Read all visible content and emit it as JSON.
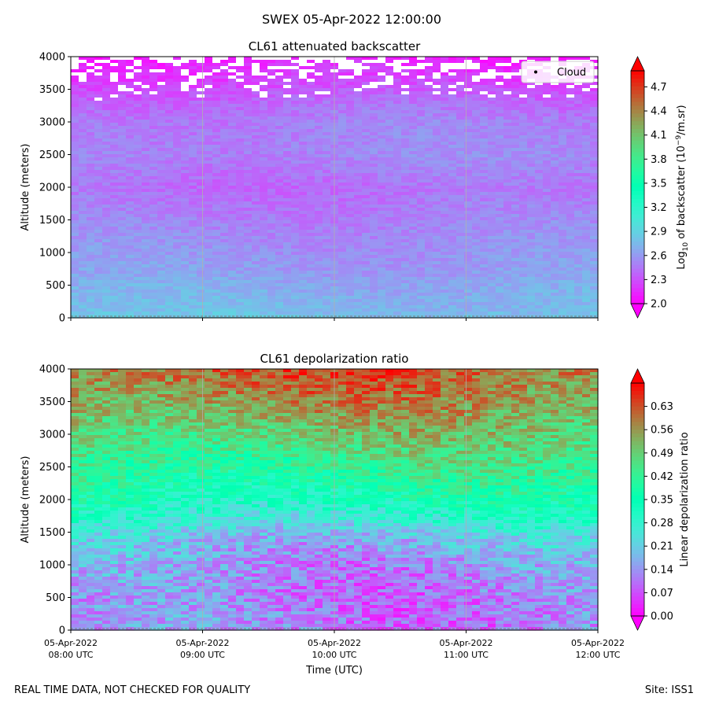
{
  "suptitle": "SWEX 05-Apr-2022 12:00:00",
  "footer": {
    "left": "REAL TIME DATA, NOT CHECKED FOR QUALITY",
    "right": "Site: ISS1"
  },
  "chart_data": [
    {
      "type": "heatmap",
      "title": "CL61 attenuated backscatter",
      "ylabel": "Altitude (meters)",
      "xlabel": "",
      "xlim": [
        "2022-04-05T08:00Z",
        "2022-04-05T12:00Z"
      ],
      "ylim": [
        0,
        4000
      ],
      "yticks": [
        0,
        500,
        1000,
        1500,
        2000,
        2500,
        3000,
        3500,
        4000
      ],
      "xticks": [],
      "xticks_labels_shown": false,
      "grid": "vertical",
      "legend": {
        "entries": [
          "Cloud"
        ],
        "placement": "top-right",
        "marker": "black-dot"
      },
      "colormap": "rainbow",
      "colorbar": {
        "label_main": "Log",
        "label_sub": "10",
        "label_rest": " of backscatter (10",
        "label_sup": "−9",
        "label_end": "/m.sr)",
        "min": 2.0,
        "max": 4.9,
        "ticks": [
          "2.0",
          "2.3",
          "2.6",
          "2.9",
          "3.2",
          "3.5",
          "3.8",
          "4.1",
          "4.4",
          "4.7"
        ],
        "extend": "both"
      },
      "profile": {
        "altitudes": [
          0,
          100,
          300,
          500,
          700,
          1000,
          1500,
          2000,
          2500,
          3000,
          3300,
          3600,
          4000
        ],
        "values": [
          2.85,
          2.75,
          2.72,
          2.68,
          2.62,
          2.58,
          2.5,
          2.42,
          2.52,
          2.48,
          2.4,
          2.25,
          2.1
        ]
      }
    },
    {
      "type": "heatmap",
      "title": "CL61 depolarization ratio",
      "ylabel": "Altitude (meters)",
      "xlabel": "Time (UTC)",
      "xlim": [
        "2022-04-05T08:00Z",
        "2022-04-05T12:00Z"
      ],
      "ylim": [
        0,
        4000
      ],
      "yticks": [
        0,
        500,
        1000,
        1500,
        2000,
        2500,
        3000,
        3500,
        4000
      ],
      "xticks": [
        {
          "date": "05-Apr-2022",
          "time": "08:00 UTC"
        },
        {
          "date": "05-Apr-2022",
          "time": "09:00 UTC"
        },
        {
          "date": "05-Apr-2022",
          "time": "10:00 UTC"
        },
        {
          "date": "05-Apr-2022",
          "time": "11:00 UTC"
        },
        {
          "date": "05-Apr-2022",
          "time": "12:00 UTC"
        }
      ],
      "grid": "vertical",
      "colormap": "rainbow",
      "colorbar": {
        "label": "Linear depolarization ratio",
        "min": 0.0,
        "max": 0.7,
        "ticks": [
          "0.00",
          "0.07",
          "0.14",
          "0.21",
          "0.28",
          "0.35",
          "0.42",
          "0.49",
          "0.56",
          "0.63"
        ],
        "extend": "both"
      },
      "profile": {
        "altitudes": [
          0,
          500,
          1000,
          1400,
          1700,
          2000,
          2500,
          3000,
          3500,
          4000
        ],
        "values": [
          0.12,
          0.12,
          0.14,
          0.19,
          0.27,
          0.34,
          0.42,
          0.49,
          0.56,
          0.62
        ]
      }
    }
  ]
}
